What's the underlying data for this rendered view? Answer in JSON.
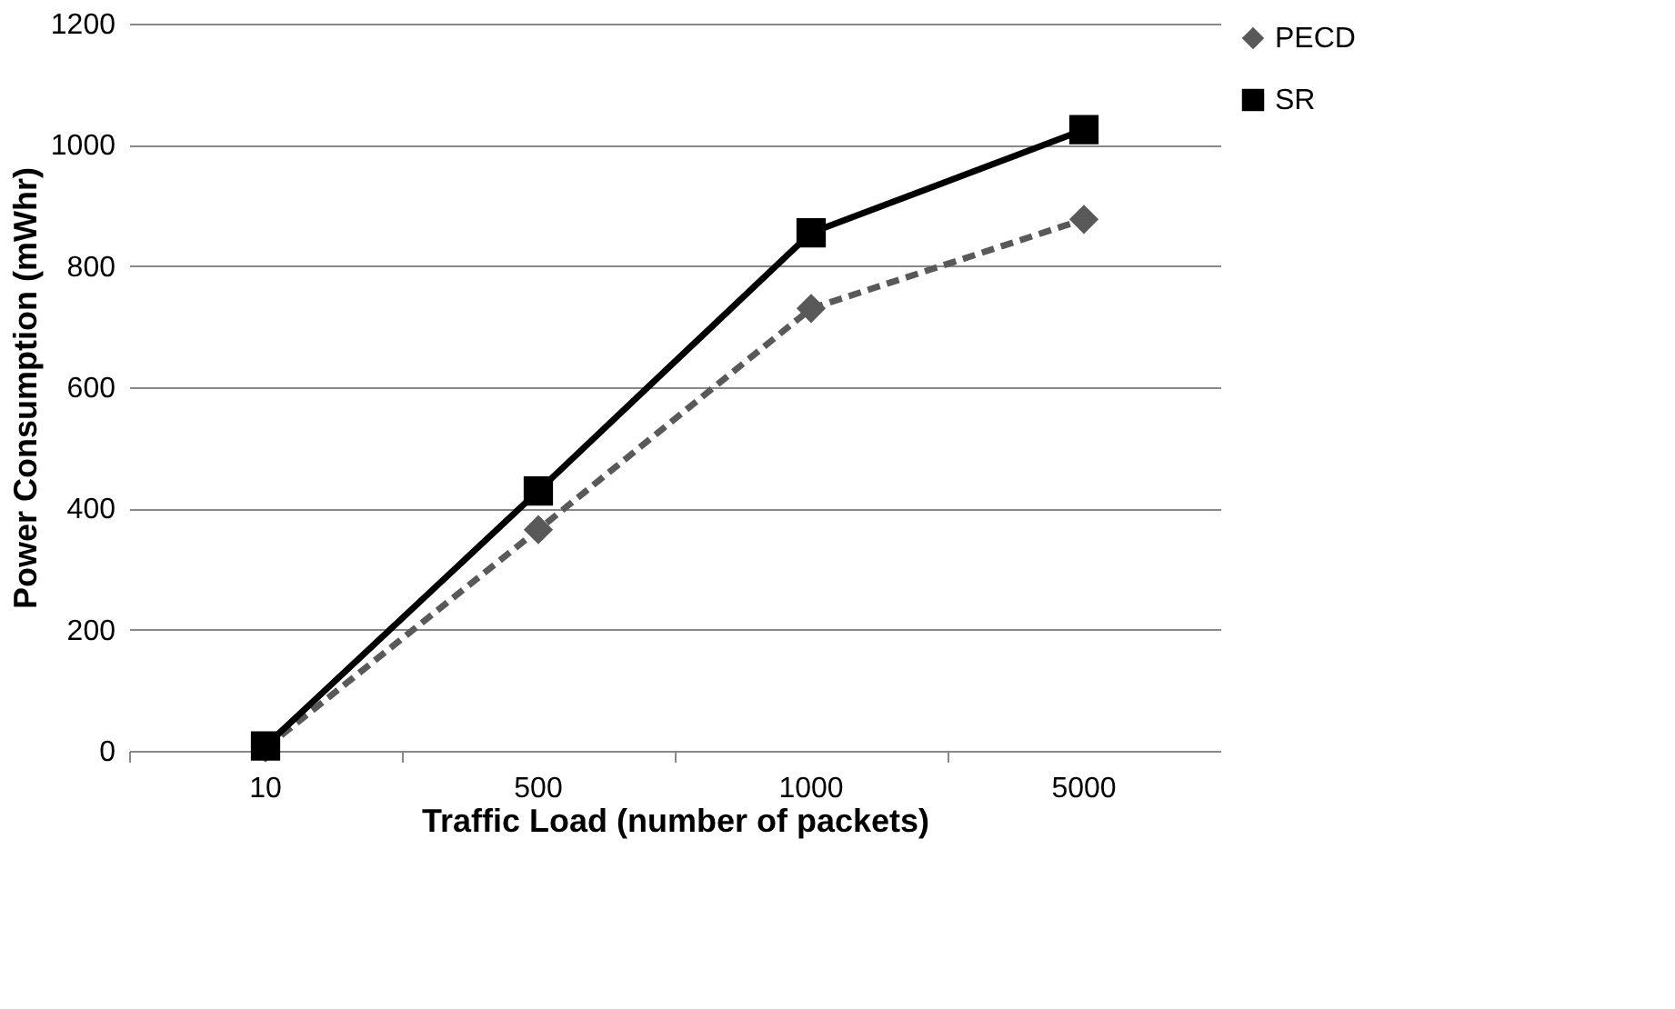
{
  "chart_data": {
    "type": "line",
    "xlabel": "Traffic Load (number of packets)",
    "ylabel": "Power Consumption (mWhr)",
    "categories": [
      "10",
      "500",
      "1000",
      "5000"
    ],
    "series": [
      {
        "name": "PECD",
        "color": "#595959",
        "values": [
          5,
          365,
          730,
          877
        ],
        "marker": "diamond",
        "line_style": "dashed"
      },
      {
        "name": "SR",
        "color": "#000000",
        "values": [
          8,
          429,
          855,
          1025
        ],
        "marker": "square",
        "line_style": "solid"
      }
    ],
    "ylim": [
      0,
      1200
    ],
    "yticks": [
      0,
      200,
      400,
      600,
      800,
      1000,
      1200
    ],
    "grid": "y",
    "legend": "right"
  }
}
